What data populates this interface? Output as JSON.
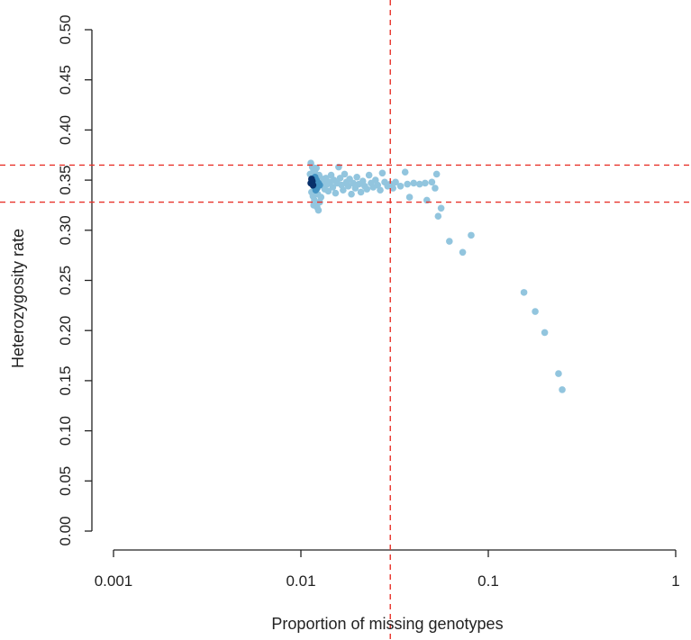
{
  "chart_data": {
    "type": "scatter",
    "title": "",
    "xlabel": "Proportion of missing genotypes",
    "ylabel": "Heterozygosity rate",
    "x_scale": "log10",
    "xlim": [
      0.001,
      1
    ],
    "ylim": [
      0.0,
      0.5
    ],
    "x_ticks": [
      0.001,
      0.01,
      0.1,
      1
    ],
    "x_tick_labels": [
      "0.001",
      "0.01",
      "0.1",
      "1"
    ],
    "y_ticks": [
      0.0,
      0.05,
      0.1,
      0.15,
      0.2,
      0.25,
      0.3,
      0.35,
      0.4,
      0.45,
      0.5
    ],
    "y_tick_labels": [
      "0.00",
      "0.05",
      "0.10",
      "0.15",
      "0.20",
      "0.25",
      "0.30",
      "0.35",
      "0.40",
      "0.45",
      "0.50"
    ],
    "grid": false,
    "legend": "none",
    "point_colors": {
      "light": "#92c5de",
      "medium": "#4393c3",
      "dark": "#08306b"
    },
    "reference_lines": [
      {
        "orientation": "vertical",
        "value": 0.03,
        "color": "#e8322a",
        "style": "dashed"
      },
      {
        "orientation": "horizontal",
        "value": 0.365,
        "color": "#e8322a",
        "style": "dashed"
      },
      {
        "orientation": "horizontal",
        "value": 0.328,
        "color": "#e8322a",
        "style": "dashed"
      }
    ],
    "points": [
      {
        "x": 0.0113,
        "y": 0.347,
        "d": 3
      },
      {
        "x": 0.0115,
        "y": 0.349,
        "d": 3
      },
      {
        "x": 0.0116,
        "y": 0.345,
        "d": 3
      },
      {
        "x": 0.0114,
        "y": 0.351,
        "d": 3
      },
      {
        "x": 0.0118,
        "y": 0.348,
        "d": 2
      },
      {
        "x": 0.0117,
        "y": 0.344,
        "d": 2
      },
      {
        "x": 0.0121,
        "y": 0.35,
        "d": 2
      },
      {
        "x": 0.0119,
        "y": 0.353,
        "d": 2
      },
      {
        "x": 0.0122,
        "y": 0.342,
        "d": 2
      },
      {
        "x": 0.0124,
        "y": 0.347,
        "d": 2
      },
      {
        "x": 0.0126,
        "y": 0.345,
        "d": 2
      },
      {
        "x": 0.012,
        "y": 0.34,
        "d": 2
      },
      {
        "x": 0.0113,
        "y": 0.367,
        "d": 1
      },
      {
        "x": 0.0115,
        "y": 0.363,
        "d": 1
      },
      {
        "x": 0.0117,
        "y": 0.36,
        "d": 1
      },
      {
        "x": 0.0119,
        "y": 0.357,
        "d": 1
      },
      {
        "x": 0.0112,
        "y": 0.356,
        "d": 1
      },
      {
        "x": 0.0121,
        "y": 0.362,
        "d": 1
      },
      {
        "x": 0.0114,
        "y": 0.338,
        "d": 1
      },
      {
        "x": 0.0116,
        "y": 0.334,
        "d": 1
      },
      {
        "x": 0.0118,
        "y": 0.33,
        "d": 1
      },
      {
        "x": 0.012,
        "y": 0.327,
        "d": 1
      },
      {
        "x": 0.0122,
        "y": 0.323,
        "d": 1
      },
      {
        "x": 0.0124,
        "y": 0.32,
        "d": 1
      },
      {
        "x": 0.0117,
        "y": 0.325,
        "d": 1
      },
      {
        "x": 0.0126,
        "y": 0.328,
        "d": 1
      },
      {
        "x": 0.0128,
        "y": 0.333,
        "d": 1
      },
      {
        "x": 0.0123,
        "y": 0.336,
        "d": 1
      },
      {
        "x": 0.0125,
        "y": 0.355,
        "d": 1
      },
      {
        "x": 0.0127,
        "y": 0.352,
        "d": 1
      },
      {
        "x": 0.013,
        "y": 0.349,
        "d": 1
      },
      {
        "x": 0.0132,
        "y": 0.344,
        "d": 1
      },
      {
        "x": 0.0134,
        "y": 0.341,
        "d": 1
      },
      {
        "x": 0.0136,
        "y": 0.352,
        "d": 1
      },
      {
        "x": 0.0138,
        "y": 0.346,
        "d": 1
      },
      {
        "x": 0.014,
        "y": 0.339,
        "d": 1
      },
      {
        "x": 0.0143,
        "y": 0.348,
        "d": 1
      },
      {
        "x": 0.0145,
        "y": 0.355,
        "d": 1
      },
      {
        "x": 0.0148,
        "y": 0.343,
        "d": 1
      },
      {
        "x": 0.015,
        "y": 0.35,
        "d": 1
      },
      {
        "x": 0.0153,
        "y": 0.337,
        "d": 1
      },
      {
        "x": 0.0156,
        "y": 0.347,
        "d": 1
      },
      {
        "x": 0.0159,
        "y": 0.363,
        "d": 1
      },
      {
        "x": 0.0162,
        "y": 0.352,
        "d": 1
      },
      {
        "x": 0.0165,
        "y": 0.345,
        "d": 1
      },
      {
        "x": 0.0168,
        "y": 0.34,
        "d": 1
      },
      {
        "x": 0.0171,
        "y": 0.356,
        "d": 1
      },
      {
        "x": 0.0175,
        "y": 0.348,
        "d": 1
      },
      {
        "x": 0.0179,
        "y": 0.344,
        "d": 1
      },
      {
        "x": 0.0182,
        "y": 0.351,
        "d": 1
      },
      {
        "x": 0.0186,
        "y": 0.336,
        "d": 1
      },
      {
        "x": 0.019,
        "y": 0.347,
        "d": 1
      },
      {
        "x": 0.0195,
        "y": 0.342,
        "d": 1
      },
      {
        "x": 0.0199,
        "y": 0.353,
        "d": 1
      },
      {
        "x": 0.0204,
        "y": 0.346,
        "d": 1
      },
      {
        "x": 0.0209,
        "y": 0.338,
        "d": 1
      },
      {
        "x": 0.0214,
        "y": 0.349,
        "d": 1
      },
      {
        "x": 0.0219,
        "y": 0.344,
        "d": 1
      },
      {
        "x": 0.0225,
        "y": 0.341,
        "d": 1
      },
      {
        "x": 0.0231,
        "y": 0.355,
        "d": 1
      },
      {
        "x": 0.0237,
        "y": 0.347,
        "d": 1
      },
      {
        "x": 0.0243,
        "y": 0.343,
        "d": 1
      },
      {
        "x": 0.025,
        "y": 0.35,
        "d": 1
      },
      {
        "x": 0.0257,
        "y": 0.345,
        "d": 1
      },
      {
        "x": 0.0265,
        "y": 0.34,
        "d": 1
      },
      {
        "x": 0.0272,
        "y": 0.357,
        "d": 1
      },
      {
        "x": 0.028,
        "y": 0.348,
        "d": 1
      },
      {
        "x": 0.029,
        "y": 0.344,
        "d": 1
      },
      {
        "x": 0.03,
        "y": 0.346,
        "d": 1
      },
      {
        "x": 0.031,
        "y": 0.342,
        "d": 1
      },
      {
        "x": 0.032,
        "y": 0.348,
        "d": 1
      },
      {
        "x": 0.034,
        "y": 0.344,
        "d": 1
      },
      {
        "x": 0.036,
        "y": 0.358,
        "d": 1
      },
      {
        "x": 0.037,
        "y": 0.346,
        "d": 1
      },
      {
        "x": 0.038,
        "y": 0.333,
        "d": 1
      },
      {
        "x": 0.04,
        "y": 0.347,
        "d": 1
      },
      {
        "x": 0.043,
        "y": 0.346,
        "d": 1
      },
      {
        "x": 0.046,
        "y": 0.347,
        "d": 1
      },
      {
        "x": 0.047,
        "y": 0.33,
        "d": 1
      },
      {
        "x": 0.05,
        "y": 0.348,
        "d": 1
      },
      {
        "x": 0.052,
        "y": 0.342,
        "d": 1
      },
      {
        "x": 0.053,
        "y": 0.356,
        "d": 1
      },
      {
        "x": 0.054,
        "y": 0.314,
        "d": 1
      },
      {
        "x": 0.056,
        "y": 0.322,
        "d": 1
      },
      {
        "x": 0.062,
        "y": 0.289,
        "d": 1
      },
      {
        "x": 0.073,
        "y": 0.278,
        "d": 1
      },
      {
        "x": 0.081,
        "y": 0.295,
        "d": 1
      },
      {
        "x": 0.155,
        "y": 0.238,
        "d": 1
      },
      {
        "x": 0.178,
        "y": 0.219,
        "d": 1
      },
      {
        "x": 0.2,
        "y": 0.198,
        "d": 1
      },
      {
        "x": 0.237,
        "y": 0.157,
        "d": 1
      },
      {
        "x": 0.248,
        "y": 0.141,
        "d": 1
      }
    ]
  }
}
